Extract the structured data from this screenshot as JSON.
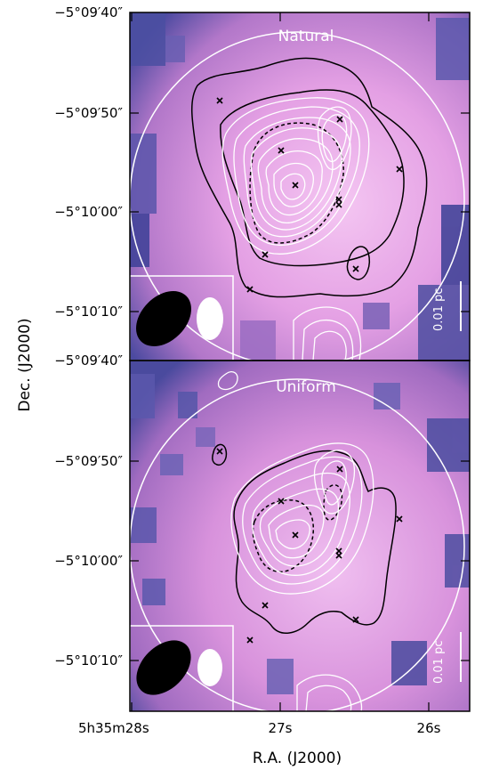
{
  "axes": {
    "ylabel": "Dec. (J2000)",
    "xlabel": "R.A. (J2000)",
    "top_ticks": [
      "−5°09′40″",
      "−5°09′50″",
      "−5°10′00″",
      "−5°10′10″"
    ],
    "bottom_ticks": [
      "−5°09′40″",
      "−5°09′50″",
      "−5°10′00″",
      "−5°10′10″"
    ],
    "x_ticks": [
      "5h35m28s",
      "27s",
      "26s"
    ]
  },
  "panels": [
    {
      "title": "Natural",
      "scale_bar": "0.01 pc"
    },
    {
      "title": "Uniform",
      "scale_bar": "0.01 pc"
    }
  ],
  "colors": {
    "background_pink": "#e7a3e4",
    "deep_blue": "#3b3f97",
    "contour_white": "#ffffff",
    "contour_black": "#000000"
  }
}
